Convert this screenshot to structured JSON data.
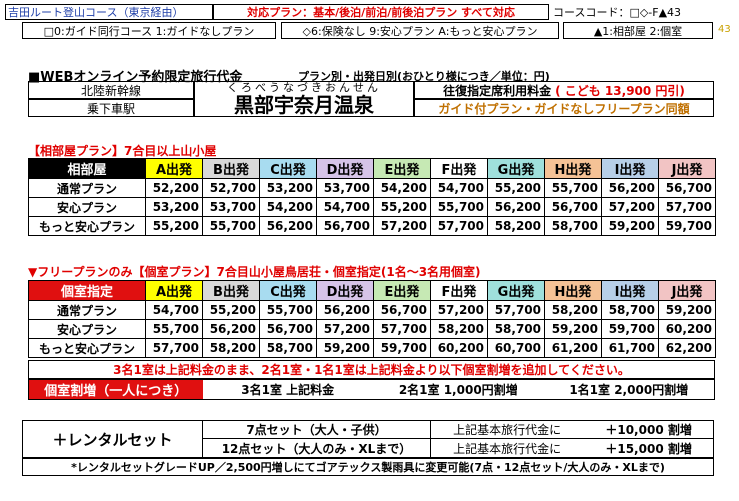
{
  "header": {
    "course_name": "吉田ルート登山コース（東京経由）",
    "plans_label": "対応プラン：基本/後泊/前泊/前後泊プラン すべて対応",
    "course_code": "コースコード：□◇-F▲43",
    "side_code": "43",
    "opt1": "□0:ガイド同行コース 1:ガイドなしプラン",
    "opt2": "◇6:保険なし 9:安心プラン A:もっと安心プラン",
    "opt3": "▲1:相部屋 2:個室"
  },
  "title_block": {
    "title": "■WEBオンライン予約限定旅行代金",
    "subtitle": "プラン別・出発日別(おひとり様につき／単位：円)",
    "line": "北陸新幹線",
    "station": "乗下車駅",
    "reading": "くろべうなづきおんせん",
    "station_name": "黒部宇奈月温泉",
    "fare_label": "往復指定席利用料金",
    "fare_child": "( こども 13,900 円引)",
    "same_price": "ガイド付プラン・ガイドなしフリープラン同額"
  },
  "colors": {
    "A": "#ffff00",
    "B": "#d9d9d9",
    "C": "#a8dcf0",
    "D": "#d6c4e8",
    "E": "#c6e9b4",
    "F": "#ffffff",
    "G": "#9fe0dc",
    "H": "#f5c296",
    "I": "#b7cfe8",
    "J": "#f2c4c4"
  },
  "departures": [
    "A出発",
    "B出発",
    "C出発",
    "D出発",
    "E出発",
    "F出発",
    "G出発",
    "H出発",
    "I出発",
    "J出発"
  ],
  "shared": {
    "title": "【相部屋プラン】7合目以上山小屋",
    "corner": "相部屋",
    "rows": [
      {
        "label": "通常プラン",
        "values": [
          "52,200",
          "52,700",
          "53,200",
          "53,700",
          "54,200",
          "54,700",
          "55,200",
          "55,700",
          "56,200",
          "56,700"
        ]
      },
      {
        "label": "安心プラン",
        "values": [
          "53,200",
          "53,700",
          "54,200",
          "54,700",
          "55,200",
          "55,700",
          "56,200",
          "56,700",
          "57,200",
          "57,700"
        ]
      },
      {
        "label": "もっと安心プラン",
        "values": [
          "55,200",
          "55,700",
          "56,200",
          "56,700",
          "57,200",
          "57,700",
          "58,200",
          "58,700",
          "59,200",
          "59,700"
        ]
      }
    ]
  },
  "private": {
    "title": "▼フリープランのみ【個室プラン】7合目山小屋鳥居荘・個室指定(1名～3名用個室)",
    "corner": "個室指定",
    "rows": [
      {
        "label": "通常プラン",
        "values": [
          "54,700",
          "55,200",
          "55,700",
          "56,200",
          "56,700",
          "57,200",
          "57,700",
          "58,200",
          "58,700",
          "59,200"
        ]
      },
      {
        "label": "安心プラン",
        "values": [
          "55,700",
          "56,200",
          "56,700",
          "57,200",
          "57,700",
          "58,200",
          "58,700",
          "59,200",
          "59,700",
          "60,200"
        ]
      },
      {
        "label": "もっと安心プラン",
        "values": [
          "57,700",
          "58,200",
          "58,700",
          "59,200",
          "59,700",
          "60,200",
          "60,700",
          "61,200",
          "61,700",
          "62,200"
        ]
      }
    ],
    "note": "3名1室は上記料金のまま、2名1室・1名1室は上記料金より以下個室割増を追加してください。",
    "surcharge_label": "個室割増（一人につき）",
    "surcharge_3": "3名1室 上記料金",
    "surcharge_2": "2名1室 1,000円割増",
    "surcharge_1": "1名1室 2,000円割増"
  },
  "rental": {
    "label": "＋レンタルセット",
    "set7": "7点セット（大人・子供）",
    "set12": "12点セット（大人のみ・XLまで）",
    "basis": "上記基本旅行代金に",
    "price7": "＋10,000 割増",
    "price12": "＋15,000 割増",
    "note": "*レンタルセットグレードUP／2,500円増しにてゴアテックス製雨具に変更可能(7点・12点セット/大人のみ・XLまで)"
  }
}
